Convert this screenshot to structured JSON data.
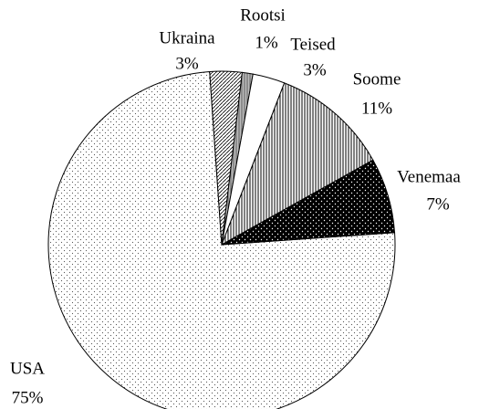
{
  "chart_data": {
    "type": "pie",
    "categories": [
      "USA",
      "Ukraina",
      "Rootsi",
      "Teised",
      "Soome",
      "Venemaa"
    ],
    "values": [
      75,
      3,
      1,
      3,
      11,
      7
    ],
    "value_labels": [
      "75%",
      "3%",
      "1%",
      "3%",
      "11%",
      "7%"
    ],
    "patterns": [
      "sparse-dots",
      "diagonal-hatch",
      "gray-lines",
      "none",
      "vertical-lines",
      "black-dots"
    ]
  }
}
